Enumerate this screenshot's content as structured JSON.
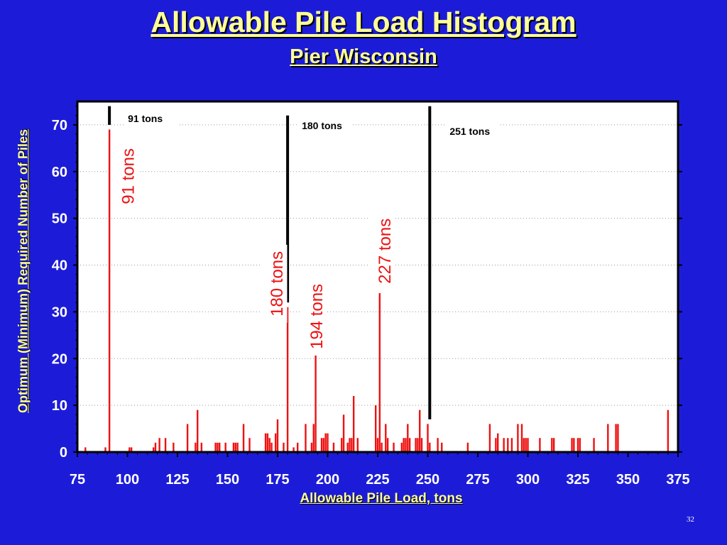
{
  "slide": {
    "title": "Allowable Pile Load Histogram",
    "subtitle": "Pier Wisconsin",
    "page_number": "32"
  },
  "colors": {
    "background": "#1c1cd8",
    "plot_area": "#ffffff",
    "bars": "#ee1111",
    "title_text": "#ffff99",
    "tick_text": "#ffffff",
    "marker_lines": "#000000"
  },
  "chart_data": {
    "type": "bar",
    "xlabel": "Allowable Pile Load, tons",
    "ylabel": "Optimum (Minimum) Required Number of Piles",
    "xlim": [
      75,
      375
    ],
    "ylim": [
      0,
      70
    ],
    "xticks": [
      75,
      100,
      125,
      150,
      175,
      200,
      225,
      250,
      275,
      300,
      325,
      350,
      375
    ],
    "yticks": [
      0,
      10,
      20,
      30,
      40,
      50,
      60,
      70
    ],
    "grid": true,
    "series": [
      {
        "x": [
          79,
          89,
          91,
          101,
          102,
          113,
          114,
          116,
          119,
          123,
          130,
          134,
          135,
          137,
          144,
          145,
          146,
          149,
          153,
          154,
          155,
          158,
          161,
          169,
          170,
          171,
          172,
          174,
          175,
          178,
          180,
          183,
          185,
          189,
          192,
          193,
          194,
          197,
          198,
          199,
          200,
          203,
          207,
          208,
          210,
          211,
          212,
          213,
          215,
          224,
          225,
          226,
          227,
          229,
          230,
          233,
          237,
          238,
          239,
          240,
          241,
          244,
          245,
          246,
          247,
          250,
          251,
          255,
          257,
          270,
          281,
          284,
          285,
          288,
          290,
          292,
          295,
          297,
          298,
          299,
          300,
          306,
          312,
          313,
          322,
          323,
          325,
          326,
          333,
          340,
          344,
          345,
          370
        ],
        "values": [
          1,
          1,
          69,
          1,
          1,
          1,
          2,
          3,
          3,
          2,
          6,
          2,
          9,
          2,
          2,
          2,
          2,
          2,
          2,
          2,
          2,
          6,
          3,
          4,
          4,
          3,
          2,
          4,
          7,
          2,
          31,
          1,
          2,
          6,
          2,
          6,
          22,
          3,
          3,
          4,
          4,
          2,
          3,
          8,
          2,
          3,
          3,
          12,
          3,
          10,
          3,
          34,
          2,
          6,
          3,
          2,
          2,
          3,
          3,
          6,
          3,
          3,
          3,
          9,
          3,
          6,
          2,
          3,
          2,
          2,
          6,
          3,
          4,
          3,
          3,
          3,
          6,
          6,
          3,
          3,
          3,
          3,
          3,
          3,
          3,
          3,
          3,
          3,
          3,
          6,
          6,
          6,
          9
        ]
      }
    ],
    "annotations": [
      {
        "text": "91 tons",
        "x": 91,
        "y": 59,
        "orientation": "vertical"
      },
      {
        "text": "180 tons",
        "x": 178,
        "y": 36,
        "orientation": "vertical"
      },
      {
        "text": "194 tons",
        "x": 193,
        "y": 29,
        "orientation": "vertical"
      },
      {
        "text": "227 tons",
        "x": 227,
        "y": 43,
        "orientation": "vertical"
      }
    ],
    "markers": [
      {
        "label": "91 tons",
        "x": 91,
        "y_from": 70,
        "y_to": 74
      },
      {
        "label": "180 tons",
        "x": 180,
        "y_from": 32,
        "y_to": 72
      },
      {
        "label": "251 tons",
        "x": 251,
        "y_from": 7,
        "y_to": 74
      }
    ]
  }
}
